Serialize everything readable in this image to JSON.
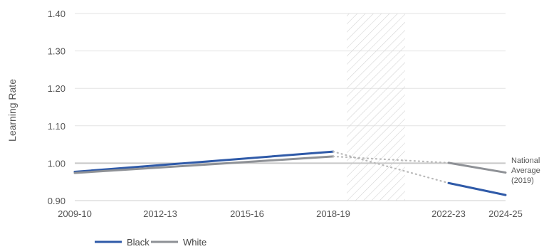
{
  "chart_data": {
    "type": "line",
    "ylabel": "Learning Rate",
    "ylim": [
      0.9,
      1.4
    ],
    "yticks": [
      "0.90",
      "1.00",
      "1.10",
      "1.20",
      "1.30",
      "1.40"
    ],
    "xticks": [
      "2009-10",
      "2012-13",
      "2015-16",
      "2018-19",
      "2022-23",
      "2024-25"
    ],
    "reference_line": {
      "value": 1.0,
      "label_lines": [
        "National",
        "Average",
        "(2019)"
      ]
    },
    "shaded_period": [
      "2019-20",
      "2021-22"
    ],
    "series": [
      {
        "name": "Black",
        "color": "#2F5AA8",
        "x": [
          "2009-10",
          "2018-19",
          "2022-23",
          "2024-25"
        ],
        "values": [
          0.977,
          1.031,
          0.947,
          0.915
        ],
        "segments": [
          {
            "x": [
              "2009-10",
              "2018-19"
            ],
            "values": [
              0.977,
              1.031
            ],
            "style": "solid"
          },
          {
            "x": [
              "2018-19",
              "2022-23"
            ],
            "values": [
              1.031,
              0.947
            ],
            "style": "dotted"
          },
          {
            "x": [
              "2022-23",
              "2024-25"
            ],
            "values": [
              0.947,
              0.915
            ],
            "style": "solid"
          }
        ]
      },
      {
        "name": "White",
        "color": "#8E9196",
        "x": [
          "2009-10",
          "2018-19",
          "2022-23",
          "2024-25"
        ],
        "values": [
          0.974,
          1.018,
          1.001,
          0.975
        ],
        "segments": [
          {
            "x": [
              "2009-10",
              "2018-19"
            ],
            "values": [
              0.974,
              1.018
            ],
            "style": "solid"
          },
          {
            "x": [
              "2018-19",
              "2022-23"
            ],
            "values": [
              1.018,
              1.001
            ],
            "style": "dotted"
          },
          {
            "x": [
              "2022-23",
              "2024-25"
            ],
            "values": [
              1.001,
              0.975
            ],
            "style": "solid"
          }
        ]
      }
    ],
    "legend": {
      "placement": "bottom-left"
    },
    "grid": true
  }
}
